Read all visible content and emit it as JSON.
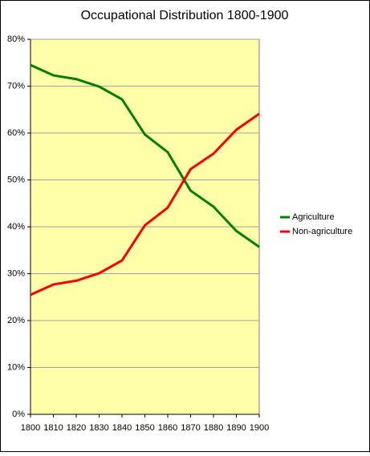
{
  "chart_data": {
    "type": "line",
    "title": "Occupational Distribution 1800-1900",
    "x": [
      1800,
      1810,
      1820,
      1830,
      1840,
      1850,
      1860,
      1870,
      1880,
      1890,
      1900
    ],
    "series": [
      {
        "name": "Agriculture",
        "color": "#008000",
        "values": [
          74.5,
          72.3,
          71.5,
          69.9,
          67.2,
          59.7,
          55.9,
          47.7,
          44.3,
          39.1,
          35.7
        ]
      },
      {
        "name": "Non-agriculture",
        "color": "#ff0000",
        "values": [
          25.5,
          27.7,
          28.5,
          30.1,
          32.8,
          40.3,
          44.1,
          52.3,
          55.6,
          60.7,
          64.1
        ]
      }
    ],
    "xlim": [
      1800,
      1900
    ],
    "xticks": [
      1800,
      1810,
      1820,
      1830,
      1840,
      1850,
      1860,
      1870,
      1880,
      1890,
      1900
    ],
    "ylim": [
      0,
      80
    ],
    "yticks": [
      {
        "value": 0,
        "label": "0%"
      },
      {
        "value": 10,
        "label": "10%"
      },
      {
        "value": 20,
        "label": "20%"
      },
      {
        "value": 30,
        "label": "30%"
      },
      {
        "value": 40,
        "label": "40%"
      },
      {
        "value": 50,
        "label": "50%"
      },
      {
        "value": 60,
        "label": "60%"
      },
      {
        "value": 70,
        "label": "70%"
      },
      {
        "value": 80,
        "label": "80%"
      }
    ],
    "grid": true,
    "legend": "right",
    "plot_background": "#ffffaa"
  }
}
